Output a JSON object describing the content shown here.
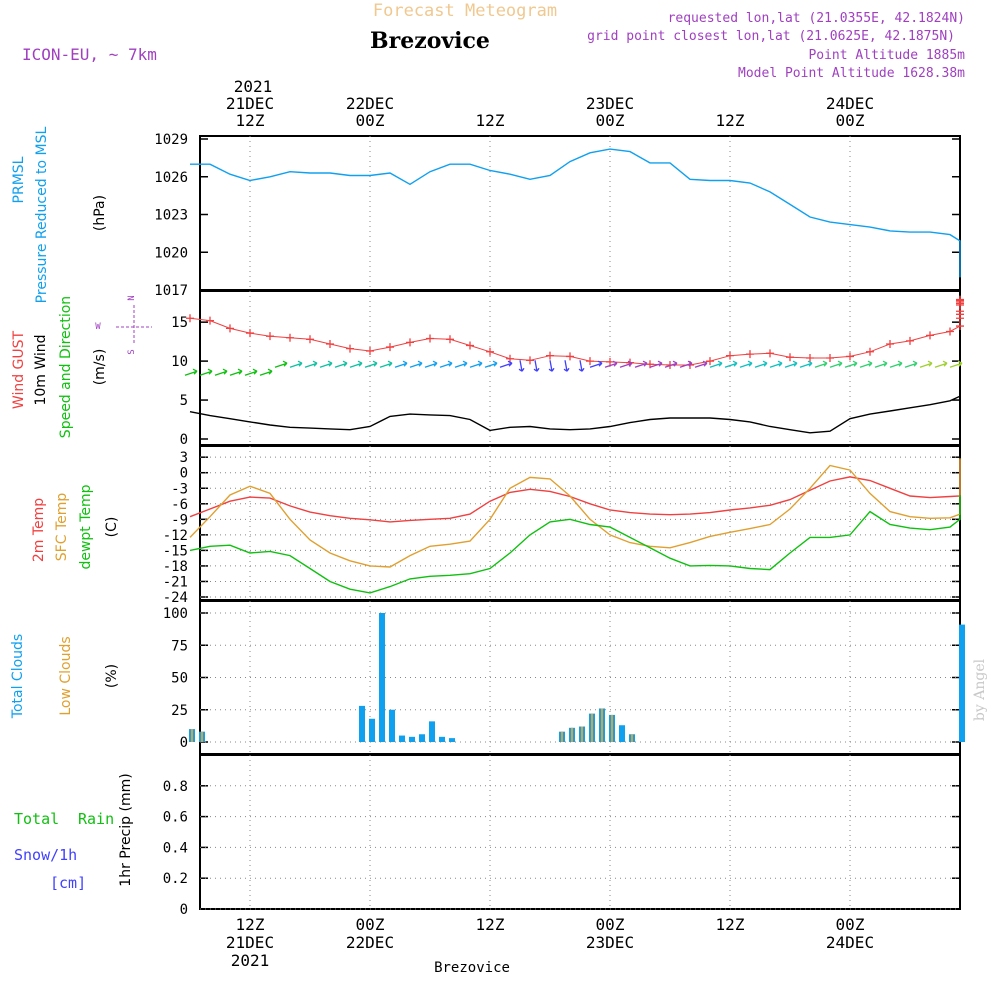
{
  "header": {
    "title": "Forecast Meteogram",
    "location": "Brezovice",
    "model": "ICON-EU, ~ 7km",
    "requested": "requested lon,lat (21.0355E, 42.1824N)",
    "grid_point": "grid point closest lon,lat (21.0625E, 42.1875N)",
    "point_alt": "Point Altitude 1885m",
    "model_alt": "Model Point Altitude 1628.38m",
    "footer": "Brezovice",
    "watermark": "by Angel"
  },
  "colors": {
    "title": "#f0c890",
    "meta": "#a040c0",
    "pressure": "#10a0f0",
    "gust": "#f04040",
    "wind": "#000000",
    "temp2m": "#f04040",
    "sfc": "#e0a030",
    "dew": "#10c010",
    "total_clouds": "#10a0f0",
    "low_clouds": "#e0a030",
    "rain": "#10c010",
    "snow": "#4040ff"
  },
  "time_axis": {
    "top_row1": [
      "2021",
      "",
      "",
      "",
      "",
      "",
      ""
    ],
    "top_row2": [
      "21DEC",
      "22DEC",
      "",
      "23DEC",
      "",
      "24DEC",
      ""
    ],
    "top_row3": [
      "12Z",
      "00Z",
      "12Z",
      "00Z",
      "12Z",
      "00Z",
      ""
    ],
    "bottom_row1": [
      "12Z",
      "00Z",
      "12Z",
      "00Z",
      "12Z",
      "00Z"
    ],
    "bottom_row2": [
      "21DEC",
      "22DEC",
      "",
      "23DEC",
      "",
      "24DEC"
    ],
    "bottom_row3": [
      "2021",
      "",
      "",
      "",
      "",
      ""
    ]
  },
  "panel_labels": {
    "p1": {
      "line1": "PRMSL",
      "line2": "Pressure Reduced to MSL",
      "unit": "(hPa)"
    },
    "p2": {
      "gust": "Wind GUST",
      "wind": "10m Wind",
      "dir": "Speed and Direction",
      "unit": "(m/s)",
      "compass_n": "N",
      "compass_s": "S",
      "compass_w": "W",
      "compass_e": "E"
    },
    "p3": {
      "t2m": "2m Temp",
      "sfc": "SFC Temp",
      "dew": "dewpt Temp",
      "unit": "(C)"
    },
    "p4": {
      "total": "Total Clouds",
      "low": "Low Clouds",
      "unit": "(%)"
    },
    "p5": {
      "rain_a": "Total",
      "rain_b": "Rain",
      "snow": "Snow/1h",
      "snow_unit": "[cm]",
      "precip": "1hr Precip (mm)"
    }
  },
  "chart_data": [
    {
      "type": "line",
      "title": "PRMSL Pressure Reduced to MSL",
      "ylabel": "(hPa)",
      "ylim": [
        1017,
        1029
      ],
      "yticks": [
        "1029",
        "1026",
        "1023",
        "1020",
        "1017"
      ],
      "x_hours": [
        0,
        2,
        4,
        6,
        8,
        10,
        12,
        14,
        16,
        18,
        20,
        22,
        24,
        26,
        28,
        30,
        32,
        34,
        36,
        38,
        40,
        42,
        44,
        46,
        48,
        50,
        52,
        54,
        56,
        58,
        60,
        62,
        64,
        66,
        68,
        70,
        72,
        74,
        76,
        78,
        80,
        82,
        84,
        86,
        88,
        90,
        92,
        94,
        96,
        98,
        100
      ],
      "x_hours_note": "hours after 2021-12-21 06Z",
      "series": [
        {
          "name": "PRMSL",
          "values": [
            1027.0,
            1027.0,
            1026.2,
            1025.7,
            1026.0,
            1026.4,
            1026.3,
            1026.3,
            1026.1,
            1026.1,
            1026.3,
            1025.4,
            1026.4,
            1027.0,
            1027.0,
            1026.5,
            1026.2,
            1025.8,
            1026.1,
            1027.2,
            1027.9,
            1028.2,
            1028.0,
            1027.1,
            1027.1,
            1025.8,
            1025.7,
            1025.7,
            1025.5,
            1024.8,
            1023.8,
            1022.8,
            1022.4,
            1022.2,
            1022.0,
            1021.7,
            1021.6,
            1021.6,
            1021.4,
            1020.9,
            1019.8,
            1019.3,
            1019.3,
            1019.6,
            1019.9,
            1019.6,
            1018.0,
            1018.0,
            1018.0,
            1018.0,
            1018.0
          ]
        }
      ]
    },
    {
      "type": "line",
      "title": "Wind GUST / 10m Wind Speed and Direction",
      "ylabel": "(m/s)",
      "ylim": [
        0,
        19
      ],
      "yticks": [
        "15",
        "10",
        "5",
        "0"
      ],
      "x_hours": [
        0,
        2,
        4,
        6,
        8,
        10,
        12,
        14,
        16,
        18,
        20,
        22,
        24,
        26,
        28,
        30,
        32,
        34,
        36,
        38,
        40,
        42,
        44,
        46,
        48,
        50,
        52,
        54,
        56,
        58,
        60,
        62,
        64,
        66,
        68,
        70,
        72,
        74,
        76,
        78,
        80,
        82,
        84,
        86,
        88,
        90,
        92,
        94,
        96,
        98,
        100
      ],
      "series": [
        {
          "name": "Wind GUST",
          "values": [
            15.5,
            15.2,
            14.2,
            13.6,
            13.2,
            13.0,
            12.8,
            12.2,
            11.6,
            11.3,
            11.8,
            12.4,
            12.9,
            12.8,
            12.0,
            11.2,
            10.3,
            10.1,
            10.7,
            10.6,
            10.0,
            9.9,
            9.8,
            9.6,
            9.5,
            9.5,
            10.0,
            10.7,
            10.9,
            11.0,
            10.5,
            10.4,
            10.4,
            10.6,
            11.2,
            12.2,
            12.6,
            13.3,
            13.8,
            14.5,
            15.5,
            16.4,
            17.2,
            17.6,
            17.8,
            17.9,
            17.4,
            16.0,
            16.0,
            16.0,
            16.0
          ]
        },
        {
          "name": "10m Wind",
          "values": [
            3.5,
            3.0,
            2.6,
            2.2,
            1.8,
            1.5,
            1.4,
            1.3,
            1.2,
            1.6,
            2.9,
            3.2,
            3.1,
            3.0,
            2.5,
            1.1,
            1.5,
            1.6,
            1.3,
            1.2,
            1.3,
            1.6,
            2.1,
            2.5,
            2.7,
            2.7,
            2.7,
            2.5,
            2.2,
            1.6,
            1.2,
            0.8,
            1.0,
            2.6,
            3.2,
            3.6,
            4.0,
            4.4,
            4.9,
            5.5,
            5.8,
            6.0,
            6.0,
            6.4,
            6.7,
            6.7,
            6.0,
            6.0,
            6.0,
            6.0,
            6.0
          ]
        }
      ]
    },
    {
      "type": "line",
      "title": "2m Temp / SFC Temp / dewpt Temp",
      "ylabel": "(C)",
      "ylim": [
        -24,
        4
      ],
      "yticks": [
        "3",
        "0",
        "-3",
        "-6",
        "-9",
        "-12",
        "-15",
        "-18",
        "-21",
        "-24"
      ],
      "x_hours": [
        0,
        2,
        4,
        6,
        8,
        10,
        12,
        14,
        16,
        18,
        20,
        22,
        24,
        26,
        28,
        30,
        32,
        34,
        36,
        38,
        40,
        42,
        44,
        46,
        48,
        50,
        52,
        54,
        56,
        58,
        60,
        62,
        64,
        66,
        68,
        70,
        72,
        74,
        76,
        78,
        80,
        82,
        84,
        86,
        88,
        90,
        92,
        94,
        96,
        98,
        100
      ],
      "series": [
        {
          "name": "2m Temp",
          "values": [
            -8.5,
            -7.0,
            -5.5,
            -4.7,
            -4.9,
            -6.4,
            -7.6,
            -8.3,
            -8.8,
            -9.1,
            -9.5,
            -9.2,
            -9.0,
            -8.8,
            -8.0,
            -5.5,
            -3.8,
            -3.2,
            -3.6,
            -4.6,
            -6.0,
            -7.2,
            -7.7,
            -8.0,
            -8.1,
            -8.0,
            -7.7,
            -7.2,
            -6.8,
            -6.3,
            -5.2,
            -3.4,
            -1.6,
            -0.8,
            -1.5,
            -3.0,
            -4.5,
            -4.8,
            -4.6,
            -4.5,
            -4.0,
            -2.5,
            -1.6,
            -1.0,
            -0.6,
            0.0,
            0.6,
            2.6,
            2.6,
            2.6,
            2.6
          ]
        },
        {
          "name": "SFC Temp",
          "values": [
            -12.5,
            -8.5,
            -4.3,
            -2.6,
            -4.0,
            -9.0,
            -13.0,
            -15.5,
            -17.0,
            -18.0,
            -18.2,
            -16.0,
            -14.2,
            -13.8,
            -13.2,
            -9.0,
            -3.0,
            -0.9,
            -1.2,
            -4.5,
            -9.0,
            -12.0,
            -13.5,
            -14.2,
            -14.5,
            -13.5,
            -12.3,
            -11.5,
            -10.8,
            -10.0,
            -7.0,
            -3.0,
            1.4,
            0.5,
            -4.0,
            -7.5,
            -8.5,
            -8.8,
            -8.7,
            -8.0,
            -6.0,
            -4.0,
            -3.5,
            -3.2,
            -3.0,
            -1.5,
            1.5,
            2.8,
            2.8,
            2.8,
            2.8
          ]
        },
        {
          "name": "dewpt Temp",
          "values": [
            -15.0,
            -14.2,
            -14.0,
            -15.5,
            -15.2,
            -16.0,
            -18.5,
            -21.0,
            -22.5,
            -23.2,
            -22.0,
            -20.5,
            -20.0,
            -19.8,
            -19.5,
            -18.5,
            -15.5,
            -12.0,
            -9.5,
            -9.0,
            -10.0,
            -10.5,
            -12.5,
            -14.5,
            -16.5,
            -18.0,
            -17.9,
            -18.0,
            -18.5,
            -18.7,
            -15.5,
            -12.5,
            -12.5,
            -12.0,
            -7.5,
            -10.0,
            -10.7,
            -11.0,
            -10.5,
            -9.0,
            -7.0,
            -6.0,
            -5.5,
            -5.3,
            -5.0,
            -4.6,
            -4.3,
            -4.3,
            -4.3,
            -4.3,
            -4.3
          ]
        }
      ]
    },
    {
      "type": "bar",
      "title": "Total Clouds / Low Clouds",
      "ylabel": "(%)",
      "ylim": [
        0,
        100
      ],
      "yticks": [
        "100",
        "75",
        "50",
        "25",
        "0"
      ],
      "x_hours": [
        0,
        2,
        4,
        6,
        8,
        10,
        12,
        14,
        16,
        18,
        20,
        22,
        24,
        26,
        28,
        30,
        32,
        34,
        36,
        38,
        40,
        42,
        44,
        46,
        48,
        50,
        52,
        54,
        56,
        58,
        60,
        62,
        64,
        66,
        68,
        70,
        72,
        74,
        76,
        78,
        80,
        82,
        84,
        86,
        88,
        90,
        92,
        94,
        96,
        98,
        100
      ],
      "series": [
        {
          "name": "Total Clouds",
          "values": [
            10,
            8,
            0,
            0,
            0,
            0,
            0,
            0,
            0,
            0,
            0,
            0,
            0,
            0,
            0,
            0,
            0,
            0,
            0,
            0,
            0,
            0,
            0,
            0,
            0,
            0,
            0,
            0,
            0,
            0,
            0,
            0,
            0,
            0,
            0,
            0,
            0,
            0,
            0,
            0,
            0,
            0,
            0,
            0,
            0,
            0,
            0,
            0,
            0,
            0,
            0
          ]
        },
        {
          "name": "Low Clouds",
          "values": [
            10,
            8,
            0,
            0,
            0,
            0,
            0,
            0,
            0,
            0,
            0,
            0,
            0,
            0,
            0,
            0,
            0,
            0,
            0,
            0,
            0,
            0,
            0,
            0,
            0,
            0,
            0,
            0,
            0,
            0,
            0,
            0,
            0,
            0,
            0,
            0,
            0,
            0,
            0,
            0,
            0,
            0,
            0,
            0,
            0,
            0,
            0,
            0,
            0,
            0,
            0
          ]
        }
      ],
      "bars_hourly": {
        "hours": [
          0,
          1,
          17,
          18,
          19,
          20,
          21,
          22,
          23,
          24,
          25,
          26,
          37,
          38,
          39,
          40,
          41,
          42,
          43,
          44,
          45,
          77,
          78,
          79,
          80,
          81,
          82,
          83,
          84,
          85,
          86,
          87,
          88,
          89,
          90,
          91,
          92,
          93,
          94,
          100
        ],
        "total": [
          10,
          8,
          28,
          18,
          100,
          25,
          5,
          4,
          6,
          16,
          4,
          3,
          8,
          11,
          12,
          22,
          26,
          21,
          13,
          6,
          0,
          25,
          70,
          21,
          91,
          17,
          15,
          2,
          2,
          4,
          35,
          40,
          71,
          12,
          8,
          5,
          0,
          0,
          0,
          4
        ],
        "low": [
          10,
          8,
          0,
          0,
          0,
          0,
          0,
          0,
          0,
          0,
          0,
          0,
          8,
          11,
          12,
          22,
          26,
          21,
          0,
          6,
          0,
          0,
          0,
          0,
          0,
          0,
          0,
          0,
          0,
          0,
          0,
          0,
          0,
          0,
          0,
          0,
          0,
          0,
          0,
          0
        ]
      }
    },
    {
      "type": "bar",
      "title": "1hr Precip (mm)",
      "ylabel": "1hr Precip (mm)",
      "ylim": [
        0,
        1.0
      ],
      "yticks": [
        "0.8",
        "0.6",
        "0.4",
        "0.2",
        "0"
      ],
      "series": [
        {
          "name": "Total Rain",
          "values": []
        },
        {
          "name": "Snow/1h",
          "values": []
        }
      ]
    }
  ]
}
